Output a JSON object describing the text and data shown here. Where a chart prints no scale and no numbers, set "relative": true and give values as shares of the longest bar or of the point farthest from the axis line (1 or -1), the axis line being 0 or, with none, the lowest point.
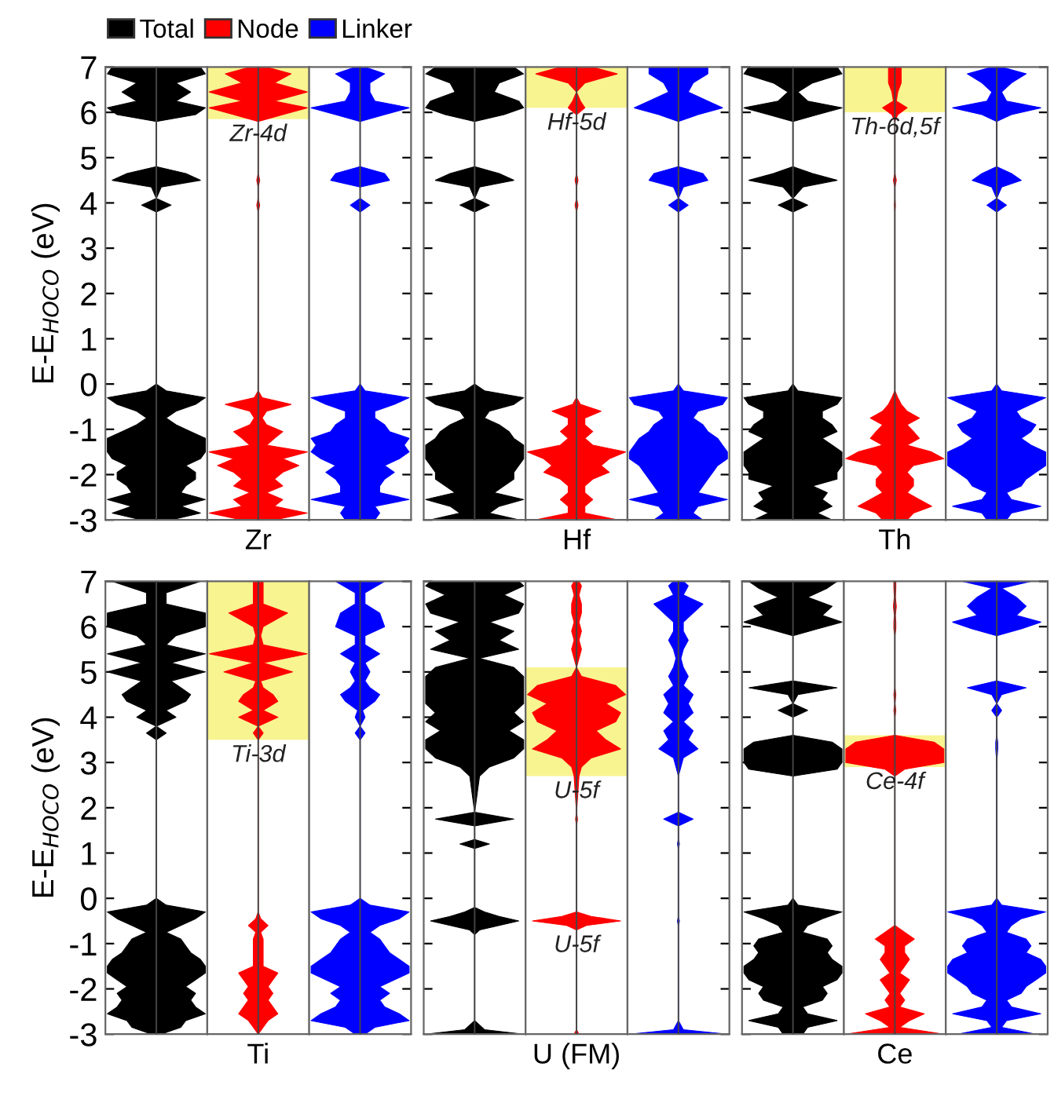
{
  "chart_data": [
    {
      "type": "area",
      "orientation": "horizontal",
      "relative": true,
      "ylabel": "E-E$_{HOCO}$ (eV)",
      "ylim": [
        -3,
        7
      ],
      "yticks": [
        -3,
        -2,
        -1,
        0,
        1,
        2,
        3,
        4,
        5,
        6,
        7
      ],
      "tick_labels": "y",
      "legend": "top left",
      "x": [
        -3,
        -2.85,
        -2.7,
        -2.55,
        -2.4,
        -2.25,
        -2.1,
        -1.95,
        -1.8,
        -1.65,
        -1.5,
        -1.35,
        -1.2,
        -1.05,
        -0.9,
        -0.75,
        -0.6,
        -0.45,
        -0.3,
        -0.15,
        0,
        3.8,
        3.95,
        4.1,
        4.35,
        4.5,
        4.65,
        4.8,
        5.8,
        5.95,
        6.1,
        6.25,
        6.45,
        6.65,
        6.85,
        7
      ],
      "series": [
        {
          "name": "Total",
          "color": "#000000",
          "values": [
            0.3,
            0.9,
            0.5,
            1.0,
            0.5,
            0.6,
            0.8,
            0.8,
            0.6,
            0.9,
            1.0,
            1.0,
            1.0,
            0.7,
            0.4,
            0.2,
            0.4,
            0.8,
            1.0,
            0.2,
            0,
            0,
            0.3,
            0,
            0.1,
            0.9,
            0.6,
            0,
            0,
            0.8,
            1.0,
            0.4,
            0.7,
            0.4,
            1.0,
            0.9
          ]
        }
      ]
    },
    {
      "type": "area",
      "orientation": "horizontal",
      "relative": true,
      "xlabel": "Zr",
      "ylim": [
        -3,
        7
      ],
      "yticks": [
        -3,
        -2,
        -1,
        0,
        1,
        2,
        3,
        4,
        5,
        6,
        7
      ],
      "tick_labels": false,
      "x": [
        -3,
        -2.85,
        -2.7,
        -2.55,
        -2.4,
        -2.25,
        -2.1,
        -1.95,
        -1.8,
        -1.65,
        -1.5,
        -1.35,
        -1.2,
        -1.05,
        -0.9,
        -0.75,
        -0.6,
        -0.45,
        -0.3,
        -0.15,
        0,
        3.8,
        3.95,
        4.1,
        4.35,
        4.5,
        4.65,
        4.8,
        5.8,
        5.95,
        6.1,
        6.25,
        6.45,
        6.65,
        6.85,
        7
      ],
      "bands": [
        {
          "axis": "y",
          "from": 5.85,
          "to": 7,
          "label": "Zr-4d",
          "color": "#f8f490"
        }
      ],
      "series": [
        {
          "name": "Node",
          "color": "#ff0000",
          "values": [
            0.33,
            1.0,
            0.33,
            0.5,
            0.17,
            0.5,
            0.33,
            0.5,
            0.83,
            0.5,
            1.0,
            0.17,
            0.33,
            0.5,
            0.17,
            0.08,
            0.17,
            0.67,
            0.08,
            0,
            0,
            0,
            0.03,
            0,
            0,
            0.03,
            0,
            0,
            0,
            0.5,
            1.0,
            0.33,
            1.0,
            0.33,
            0.67,
            0.17
          ]
        }
      ]
    },
    {
      "type": "area",
      "orientation": "horizontal",
      "relative": true,
      "ylim": [
        -3,
        7
      ],
      "yticks": [
        -3,
        -2,
        -1,
        0,
        1,
        2,
        3,
        4,
        5,
        6,
        7
      ],
      "tick_labels": false,
      "x": [
        -3,
        -2.85,
        -2.7,
        -2.55,
        -2.4,
        -2.25,
        -2.1,
        -1.95,
        -1.8,
        -1.65,
        -1.5,
        -1.35,
        -1.2,
        -1.05,
        -0.9,
        -0.75,
        -0.6,
        -0.45,
        -0.3,
        -0.15,
        0,
        3.8,
        3.95,
        4.1,
        4.35,
        4.5,
        4.65,
        4.8,
        5.8,
        5.95,
        6.1,
        6.25,
        6.45,
        6.65,
        6.85,
        7
      ],
      "series": [
        {
          "name": "Linker",
          "color": "#0000ff",
          "values": [
            0.3,
            0.4,
            0.3,
            1.0,
            0.4,
            0.4,
            0.5,
            0.7,
            0.5,
            0.8,
            1.0,
            0.9,
            1.0,
            0.6,
            0.5,
            0.3,
            0.3,
            0.7,
            1.0,
            0.1,
            0,
            0,
            0.2,
            0,
            0,
            0.6,
            0.5,
            0,
            0,
            0.5,
            1.0,
            0.3,
            0.2,
            0.2,
            0.5,
            0.1
          ]
        }
      ]
    },
    {
      "type": "area",
      "orientation": "horizontal",
      "relative": true,
      "ylim": [
        -3,
        7
      ],
      "yticks": [
        -3,
        -2,
        -1,
        0,
        1,
        2,
        3,
        4,
        5,
        6,
        7
      ],
      "tick_labels": false,
      "x": [
        -3,
        -2.85,
        -2.7,
        -2.55,
        -2.4,
        -2.25,
        -2.1,
        -1.95,
        -1.8,
        -1.65,
        -1.5,
        -1.35,
        -1.2,
        -1.05,
        -0.9,
        -0.75,
        -0.6,
        -0.45,
        -0.3,
        -0.15,
        0,
        3.8,
        3.95,
        4.1,
        4.35,
        4.5,
        4.65,
        4.8,
        5.8,
        5.95,
        6.1,
        6.25,
        6.45,
        6.65,
        6.85,
        7
      ],
      "series": [
        {
          "name": "Total",
          "color": "#000000",
          "values": [
            0.9,
            0.3,
            0.5,
            1.0,
            0.4,
            0.6,
            0.8,
            0.8,
            0.9,
            1.0,
            1.0,
            1.0,
            0.8,
            0.7,
            0.5,
            0.2,
            0.3,
            0.8,
            1.0,
            0.2,
            0,
            0,
            0.3,
            0,
            0.1,
            0.8,
            0.5,
            0,
            0,
            0.6,
            1.0,
            0.9,
            0.4,
            0.5,
            1.0,
            0.8
          ]
        }
      ]
    },
    {
      "type": "area",
      "orientation": "horizontal",
      "relative": true,
      "xlabel": "Hf",
      "ylim": [
        -3,
        7
      ],
      "yticks": [
        -3,
        -2,
        -1,
        0,
        1,
        2,
        3,
        4,
        5,
        6,
        7
      ],
      "tick_labels": false,
      "x": [
        -3,
        -2.85,
        -2.7,
        -2.55,
        -2.4,
        -2.25,
        -2.1,
        -1.95,
        -1.8,
        -1.65,
        -1.5,
        -1.35,
        -1.2,
        -1.05,
        -0.9,
        -0.75,
        -0.6,
        -0.45,
        -0.3,
        -0.15,
        0,
        3.8,
        3.95,
        4.1,
        4.35,
        4.5,
        4.65,
        4.8,
        5.8,
        5.95,
        6.1,
        6.25,
        6.45,
        6.65,
        6.85,
        7
      ],
      "bands": [
        {
          "axis": "y",
          "from": 6.1,
          "to": 7,
          "label": "Hf-5d",
          "color": "#f8f490"
        }
      ],
      "series": [
        {
          "name": "Node",
          "color": "#ff0000",
          "values": [
            0.83,
            0.17,
            0.17,
            0.33,
            0.17,
            0.17,
            0.33,
            0.67,
            0.5,
            0.67,
            1.0,
            0.33,
            0.17,
            0.33,
            0.17,
            0.17,
            0.5,
            0.08,
            0,
            0,
            0,
            0,
            0.03,
            0,
            0,
            0.03,
            0,
            0,
            0,
            0,
            0.17,
            0.08,
            0,
            0.17,
            0.83,
            0.33
          ]
        }
      ]
    },
    {
      "type": "area",
      "orientation": "horizontal",
      "relative": true,
      "ylim": [
        -3,
        7
      ],
      "yticks": [
        -3,
        -2,
        -1,
        0,
        1,
        2,
        3,
        4,
        5,
        6,
        7
      ],
      "tick_labels": false,
      "x": [
        -3,
        -2.85,
        -2.7,
        -2.55,
        -2.4,
        -2.25,
        -2.1,
        -1.95,
        -1.8,
        -1.65,
        -1.5,
        -1.35,
        -1.2,
        -1.05,
        -0.9,
        -0.75,
        -0.6,
        -0.45,
        -0.3,
        -0.15,
        0,
        3.8,
        3.95,
        4.1,
        4.35,
        4.5,
        4.65,
        4.8,
        5.8,
        5.95,
        6.1,
        6.25,
        6.45,
        6.65,
        6.85,
        7
      ],
      "series": [
        {
          "name": "Linker",
          "color": "#0000ff",
          "values": [
            0.5,
            0.3,
            0.4,
            1.0,
            0.4,
            0.5,
            0.6,
            0.7,
            0.8,
            1.0,
            1.0,
            0.9,
            0.8,
            0.6,
            0.5,
            0.3,
            0.4,
            0.9,
            1.0,
            0.1,
            0,
            0,
            0.2,
            0,
            0.1,
            0.6,
            0.5,
            0,
            0,
            0.4,
            0.9,
            0.6,
            0.2,
            0.3,
            0.6,
            0.6
          ]
        }
      ]
    },
    {
      "type": "area",
      "orientation": "horizontal",
      "relative": true,
      "ylim": [
        -3,
        7
      ],
      "yticks": [
        -3,
        -2,
        -1,
        0,
        1,
        2,
        3,
        4,
        5,
        6,
        7
      ],
      "tick_labels": false,
      "x": [
        -3,
        -2.85,
        -2.7,
        -2.55,
        -2.4,
        -2.25,
        -2.1,
        -1.95,
        -1.8,
        -1.65,
        -1.5,
        -1.35,
        -1.2,
        -1.05,
        -0.9,
        -0.75,
        -0.6,
        -0.45,
        -0.3,
        -0.15,
        0,
        3.8,
        3.95,
        4.1,
        4.35,
        4.5,
        4.65,
        4.8,
        5.8,
        5.95,
        6.1,
        6.25,
        6.45,
        6.65,
        6.85,
        7
      ],
      "series": [
        {
          "name": "Total",
          "color": "#000000",
          "values": [
            0.8,
            0.5,
            0.8,
            0.6,
            0.7,
            0.4,
            0.9,
            0.9,
            1.0,
            1.0,
            1.0,
            0.8,
            0.6,
            0.9,
            0.8,
            0.6,
            0.6,
            0.9,
            1.0,
            0.1,
            0,
            0,
            0.3,
            0,
            0.2,
            0.9,
            0.4,
            0,
            0,
            0.5,
            1.0,
            0.3,
            0.1,
            0.4,
            1.0,
            0.9
          ]
        }
      ]
    },
    {
      "type": "area",
      "orientation": "horizontal",
      "relative": true,
      "xlabel": "Th",
      "ylim": [
        -3,
        7
      ],
      "yticks": [
        -3,
        -2,
        -1,
        0,
        1,
        2,
        3,
        4,
        5,
        6,
        7
      ],
      "tick_labels": false,
      "x": [
        -3,
        -2.85,
        -2.7,
        -2.55,
        -2.4,
        -2.25,
        -2.1,
        -1.95,
        -1.8,
        -1.65,
        -1.5,
        -1.35,
        -1.2,
        -1.05,
        -0.9,
        -0.75,
        -0.6,
        -0.45,
        -0.3,
        -0.15,
        0,
        3.8,
        3.95,
        4.1,
        4.35,
        4.5,
        4.65,
        4.8,
        5.8,
        5.95,
        6.1,
        6.25,
        6.45,
        6.65,
        6.85,
        7
      ],
      "bands": [
        {
          "axis": "y",
          "from": 6.0,
          "to": 7,
          "label": "Th-6d,5f",
          "color": "#f8f490"
        }
      ],
      "series": [
        {
          "name": "Node",
          "color": "#ff0000",
          "values": [
            0.25,
            0.38,
            0.75,
            0.5,
            0.25,
            0.38,
            0.38,
            0.25,
            0.38,
            1.0,
            0.75,
            0.25,
            0.5,
            0.38,
            0.25,
            0.5,
            0.25,
            0.13,
            0.06,
            0,
            0,
            0,
            0.01,
            0,
            0,
            0.03,
            0,
            0,
            0,
            0.06,
            0.25,
            0.03,
            0.06,
            0.13,
            0.13,
            0.13
          ]
        }
      ]
    },
    {
      "type": "area",
      "orientation": "horizontal",
      "relative": true,
      "ylim": [
        -3,
        7
      ],
      "yticks": [
        -3,
        -2,
        -1,
        0,
        1,
        2,
        3,
        4,
        5,
        6,
        7
      ],
      "tick_labels": false,
      "x": [
        -3,
        -2.85,
        -2.7,
        -2.55,
        -2.4,
        -2.25,
        -2.1,
        -1.95,
        -1.8,
        -1.65,
        -1.5,
        -1.35,
        -1.2,
        -1.05,
        -0.9,
        -0.75,
        -0.6,
        -0.45,
        -0.3,
        -0.15,
        0,
        3.8,
        3.95,
        4.1,
        4.35,
        4.5,
        4.65,
        4.8,
        5.8,
        5.95,
        6.1,
        6.25,
        6.45,
        6.65,
        6.85,
        7
      ],
      "series": [
        {
          "name": "Linker",
          "color": "#0000ff",
          "values": [
            0.2,
            0.3,
            0.9,
            0.3,
            0.2,
            0.5,
            0.6,
            0.8,
            1.0,
            1.0,
            1.0,
            0.7,
            0.5,
            0.7,
            0.8,
            0.5,
            0.4,
            0.7,
            1.0,
            0.1,
            0,
            0,
            0.2,
            0,
            0.1,
            0.5,
            0.3,
            0,
            0,
            0.3,
            0.9,
            0.2,
            0.1,
            0.3,
            0.6,
            0.1
          ]
        }
      ]
    },
    {
      "type": "area",
      "orientation": "horizontal",
      "relative": true,
      "ylabel": "E-E$_{HOCO}$ (eV)",
      "ylim": [
        -3,
        7
      ],
      "yticks": [
        -3,
        -2,
        -1,
        0,
        1,
        2,
        3,
        4,
        5,
        6,
        7
      ],
      "tick_labels": "y",
      "x": [
        -3,
        -2.85,
        -2.7,
        -2.55,
        -2.4,
        -2.25,
        -2.1,
        -1.95,
        -1.8,
        -1.65,
        -1.5,
        -1.35,
        -1.2,
        -1.05,
        -0.9,
        -0.75,
        -0.6,
        -0.45,
        -0.3,
        -0.15,
        0,
        3.5,
        3.65,
        3.8,
        4.0,
        4.15,
        4.35,
        4.5,
        4.65,
        4.8,
        5.0,
        5.2,
        5.4,
        5.6,
        5.8,
        6.0,
        6.3,
        6.5,
        6.75,
        7
      ],
      "series": [
        {
          "name": "Total",
          "color": "#000000",
          "values": [
            0.1,
            0.5,
            0.6,
            1.0,
            0.8,
            0.7,
            0.8,
            0.6,
            0.8,
            1.0,
            1.0,
            0.9,
            0.7,
            0.6,
            0.5,
            0.2,
            0.5,
            0.8,
            1.0,
            0.2,
            0,
            0,
            0.2,
            0,
            0.4,
            0.2,
            0.6,
            0.7,
            0.5,
            0.3,
            1.0,
            0.3,
            1.0,
            0.2,
            0.4,
            1.0,
            1.0,
            0.2,
            0.2,
            0.9
          ]
        }
      ]
    },
    {
      "type": "area",
      "orientation": "horizontal",
      "relative": true,
      "xlabel": "Ti",
      "ylim": [
        -3,
        7
      ],
      "yticks": [
        -3,
        -2,
        -1,
        0,
        1,
        2,
        3,
        4,
        5,
        6,
        7
      ],
      "tick_labels": false,
      "x": [
        -3,
        -2.85,
        -2.7,
        -2.55,
        -2.4,
        -2.25,
        -2.1,
        -1.95,
        -1.8,
        -1.65,
        -1.5,
        -1.35,
        -1.2,
        -1.05,
        -0.9,
        -0.75,
        -0.6,
        -0.45,
        -0.3,
        -0.15,
        0,
        3.5,
        3.65,
        3.8,
        4.0,
        4.15,
        4.35,
        4.5,
        4.65,
        4.8,
        5.0,
        5.2,
        5.4,
        5.6,
        5.8,
        6.0,
        6.3,
        6.5,
        6.75,
        7
      ],
      "bands": [
        {
          "axis": "y",
          "from": 3.5,
          "to": 7,
          "label": "Ti-3d",
          "color": "#f8f490"
        }
      ],
      "series": [
        {
          "name": "Node",
          "color": "#ff0000",
          "values": [
            0,
            0.1,
            0.2,
            0.4,
            0.3,
            0.2,
            0.3,
            0.2,
            0.3,
            0.4,
            0.1,
            0.1,
            0.1,
            0.1,
            0.1,
            0.05,
            0.2,
            0.05,
            0,
            0,
            0,
            0,
            0.1,
            0,
            0.4,
            0.1,
            0.4,
            0.3,
            0.1,
            0.05,
            0.7,
            0.1,
            1.0,
            0.1,
            0.05,
            0.1,
            0.6,
            0.1,
            0.1,
            0.1
          ]
        }
      ]
    },
    {
      "type": "area",
      "orientation": "horizontal",
      "relative": true,
      "ylim": [
        -3,
        7
      ],
      "yticks": [
        -3,
        -2,
        -1,
        0,
        1,
        2,
        3,
        4,
        5,
        6,
        7
      ],
      "tick_labels": false,
      "x": [
        -3,
        -2.85,
        -2.7,
        -2.55,
        -2.4,
        -2.25,
        -2.1,
        -1.95,
        -1.8,
        -1.65,
        -1.5,
        -1.35,
        -1.2,
        -1.05,
        -0.9,
        -0.75,
        -0.6,
        -0.45,
        -0.3,
        -0.15,
        0,
        3.5,
        3.65,
        3.8,
        4.0,
        4.15,
        4.35,
        4.5,
        4.65,
        4.8,
        5.0,
        5.2,
        5.4,
        5.6,
        5.8,
        6.0,
        6.3,
        6.5,
        6.75,
        7
      ],
      "series": [
        {
          "name": "Linker",
          "color": "#0000ff",
          "values": [
            0.1,
            0.3,
            1.0,
            0.8,
            0.5,
            0.4,
            0.6,
            0.4,
            0.7,
            1.0,
            1.0,
            0.8,
            0.6,
            0.5,
            0.4,
            0.2,
            0.4,
            0.8,
            1.0,
            0.2,
            0,
            0,
            0.1,
            0,
            0.1,
            0.05,
            0.3,
            0.4,
            0.2,
            0.1,
            0.2,
            0.1,
            0.4,
            0.1,
            0.1,
            0.5,
            0.4,
            0.1,
            0.1,
            0.5
          ]
        }
      ]
    },
    {
      "type": "area",
      "orientation": "horizontal",
      "relative": true,
      "ylim": [
        -3,
        7
      ],
      "yticks": [
        -3,
        -2,
        -1,
        0,
        1,
        2,
        3,
        4,
        5,
        6,
        7
      ],
      "tick_labels": false,
      "x": [
        -3,
        -2.9,
        -2.7,
        -0.8,
        -0.7,
        -0.6,
        -0.5,
        -0.4,
        -0.3,
        -0.2,
        1.1,
        1.2,
        1.3,
        1.6,
        1.75,
        1.9,
        2.7,
        2.9,
        3.1,
        3.3,
        3.5,
        3.7,
        3.9,
        4.1,
        4.3,
        4.5,
        4.7,
        4.9,
        5.1,
        5.3,
        5.5,
        5.7,
        5.9,
        6.1,
        6.3,
        6.5,
        6.7,
        6.9,
        7
      ],
      "series": [
        {
          "name": "Total",
          "color": "#000000",
          "values": [
            1.0,
            0.2,
            0,
            0,
            0.1,
            0.5,
            0.9,
            0.5,
            0.2,
            0,
            0,
            0.3,
            0,
            0,
            0.8,
            0,
            0.1,
            0.3,
            0.8,
            1.0,
            1.0,
            0.7,
            1.0,
            0.8,
            1.0,
            1.0,
            1.0,
            1.0,
            0.8,
            0.1,
            0.9,
            0.5,
            0.8,
            0.3,
            0.9,
            1.0,
            0.6,
            1.0,
            0.9
          ]
        }
      ]
    },
    {
      "type": "area",
      "orientation": "horizontal",
      "relative": true,
      "xlabel": "U (FM)",
      "ylim": [
        -3,
        7
      ],
      "yticks": [
        -3,
        -2,
        -1,
        0,
        1,
        2,
        3,
        4,
        5,
        6,
        7
      ],
      "tick_labels": false,
      "x": [
        -3,
        -2.9,
        -2.7,
        -0.8,
        -0.7,
        -0.6,
        -0.5,
        -0.4,
        -0.3,
        -0.2,
        1.1,
        1.2,
        1.3,
        1.6,
        1.75,
        1.9,
        2.7,
        2.9,
        3.1,
        3.3,
        3.5,
        3.7,
        3.9,
        4.1,
        4.3,
        4.5,
        4.7,
        4.9,
        5.1,
        5.3,
        5.5,
        5.7,
        5.9,
        6.1,
        6.3,
        6.5,
        6.7,
        6.9,
        7
      ],
      "bands": [
        {
          "axis": "y",
          "from": 2.7,
          "to": 5.1,
          "label": "U-5f",
          "color": "#f8f490"
        }
      ],
      "annotations": [
        {
          "text": "U-5f",
          "x": 0,
          "y": -1.05
        }
      ],
      "series": [
        {
          "name": "Node",
          "color": "#ff0000",
          "values": [
            0.05,
            0,
            0,
            0,
            0,
            0.2,
            0.9,
            0.3,
            0,
            0,
            0,
            0,
            0,
            0,
            0.02,
            0,
            0.05,
            0.1,
            0.3,
            0.9,
            0.6,
            0.4,
            0.8,
            0.9,
            0.6,
            1.0,
            0.8,
            0.1,
            0,
            0.05,
            0.1,
            0.05,
            0.1,
            0.05,
            0.1,
            0.1,
            0.05,
            0.1,
            0.05
          ]
        }
      ]
    },
    {
      "type": "area",
      "orientation": "horizontal",
      "relative": true,
      "ylim": [
        -3,
        7
      ],
      "yticks": [
        -3,
        -2,
        -1,
        0,
        1,
        2,
        3,
        4,
        5,
        6,
        7
      ],
      "tick_labels": false,
      "x": [
        -3,
        -2.9,
        -2.7,
        -0.8,
        -0.7,
        -0.6,
        -0.5,
        -0.4,
        -0.3,
        -0.2,
        1.1,
        1.2,
        1.3,
        1.6,
        1.75,
        1.9,
        2.7,
        2.9,
        3.1,
        3.3,
        3.5,
        3.7,
        3.9,
        4.1,
        4.3,
        4.5,
        4.7,
        4.9,
        5.1,
        5.3,
        5.5,
        5.7,
        5.9,
        6.1,
        6.3,
        6.5,
        6.7,
        6.9,
        7
      ],
      "series": [
        {
          "name": "Linker",
          "color": "#0000ff",
          "values": [
            1.0,
            0.1,
            0,
            0,
            0,
            0,
            0.02,
            0,
            0,
            0,
            0,
            0.02,
            0,
            0,
            0.3,
            0,
            0,
            0.05,
            0.1,
            0.4,
            0.2,
            0.3,
            0.1,
            0.3,
            0.2,
            0.3,
            0.1,
            0.2,
            0.1,
            0.05,
            0.1,
            0.2,
            0.1,
            0.1,
            0.3,
            0.5,
            0.1,
            0.2,
            0.1
          ]
        }
      ]
    },
    {
      "type": "area",
      "orientation": "horizontal",
      "relative": true,
      "ylim": [
        -3,
        7
      ],
      "yticks": [
        -3,
        -2,
        -1,
        0,
        1,
        2,
        3,
        4,
        5,
        6,
        7
      ],
      "tick_labels": false,
      "x": [
        -3,
        -2.85,
        -2.7,
        -2.55,
        -2.4,
        -2.25,
        -2.1,
        -1.95,
        -1.8,
        -1.65,
        -1.5,
        -1.35,
        -1.2,
        -1.05,
        -0.9,
        -0.75,
        -0.6,
        -0.45,
        -0.3,
        -0.15,
        0,
        2.7,
        2.85,
        3.0,
        3.15,
        3.3,
        3.45,
        3.6,
        4.0,
        4.15,
        4.3,
        4.5,
        4.65,
        4.8,
        5.8,
        5.95,
        6.1,
        6.25,
        6.45,
        6.65,
        6.85,
        7
      ],
      "series": [
        {
          "name": "Total",
          "color": "#000000",
          "values": [
            0.2,
            0.3,
            0.9,
            0.3,
            0.2,
            0.6,
            0.7,
            0.6,
            0.9,
            1.0,
            1.0,
            0.8,
            0.7,
            0.8,
            0.7,
            0.2,
            0.3,
            0.6,
            1.0,
            0.1,
            0,
            0,
            0.9,
            1.0,
            1.0,
            1.0,
            0.8,
            0,
            0,
            0.3,
            0,
            0.1,
            0.9,
            0,
            0,
            0.5,
            1.0,
            0.6,
            0.8,
            0.3,
            0.7,
            0.9
          ]
        }
      ]
    },
    {
      "type": "area",
      "orientation": "horizontal",
      "relative": true,
      "xlabel": "Ce",
      "ylim": [
        -3,
        7
      ],
      "yticks": [
        -3,
        -2,
        -1,
        0,
        1,
        2,
        3,
        4,
        5,
        6,
        7
      ],
      "tick_labels": false,
      "x": [
        -3,
        -2.85,
        -2.7,
        -2.55,
        -2.4,
        -2.25,
        -2.1,
        -1.95,
        -1.8,
        -1.65,
        -1.5,
        -1.35,
        -1.2,
        -1.05,
        -0.9,
        -0.75,
        -0.6,
        -0.45,
        -0.3,
        -0.15,
        0,
        2.7,
        2.85,
        3.0,
        3.15,
        3.3,
        3.45,
        3.6,
        4.0,
        4.15,
        4.3,
        4.5,
        4.65,
        4.8,
        5.8,
        5.95,
        6.1,
        6.25,
        6.45,
        6.65,
        6.85,
        7
      ],
      "bands": [
        {
          "axis": "y",
          "from": 2.9,
          "to": 3.6,
          "label": "Ce-4f",
          "color": "#f8f490"
        }
      ],
      "series": [
        {
          "name": "Node",
          "color": "#ff0000",
          "values": [
            1.0,
            0.1,
            0.3,
            0.6,
            0.1,
            0.2,
            0.1,
            0.2,
            0.3,
            0.1,
            0.2,
            0.3,
            0.2,
            0.2,
            0.4,
            0.2,
            0,
            0,
            0,
            0,
            0,
            0,
            0.2,
            1.0,
            1.0,
            1.0,
            0.8,
            0,
            0,
            0.02,
            0,
            0.02,
            0,
            0,
            0,
            0.02,
            0.02,
            0.01,
            0.03,
            0.01,
            0.02,
            0.02
          ]
        }
      ]
    },
    {
      "type": "area",
      "orientation": "horizontal",
      "relative": true,
      "ylim": [
        -3,
        7
      ],
      "yticks": [
        -3,
        -2,
        -1,
        0,
        1,
        2,
        3,
        4,
        5,
        6,
        7
      ],
      "tick_labels": false,
      "x": [
        -3,
        -2.85,
        -2.7,
        -2.55,
        -2.4,
        -2.25,
        -2.1,
        -1.95,
        -1.8,
        -1.65,
        -1.5,
        -1.35,
        -1.2,
        -1.05,
        -0.9,
        -0.75,
        -0.6,
        -0.45,
        -0.3,
        -0.15,
        0,
        2.7,
        2.85,
        3.0,
        3.15,
        3.3,
        3.45,
        3.6,
        4.0,
        4.15,
        4.3,
        4.5,
        4.65,
        4.8,
        5.8,
        5.95,
        6.1,
        6.25,
        6.45,
        6.65,
        6.85,
        7
      ],
      "series": [
        {
          "name": "Linker",
          "color": "#0000ff",
          "values": [
            0.8,
            0.1,
            0.2,
            0.9,
            0.3,
            0.2,
            0.5,
            0.6,
            0.8,
            1.0,
            1.0,
            0.9,
            0.6,
            0.7,
            0.6,
            0.2,
            0.3,
            0.5,
            1.0,
            0.1,
            0,
            0,
            0,
            0,
            0.01,
            0.02,
            0.02,
            0,
            0,
            0.1,
            0,
            0.1,
            0.6,
            0,
            0,
            0.5,
            0.9,
            0.4,
            0.6,
            0.4,
            0.1,
            0.7
          ]
        }
      ]
    }
  ]
}
